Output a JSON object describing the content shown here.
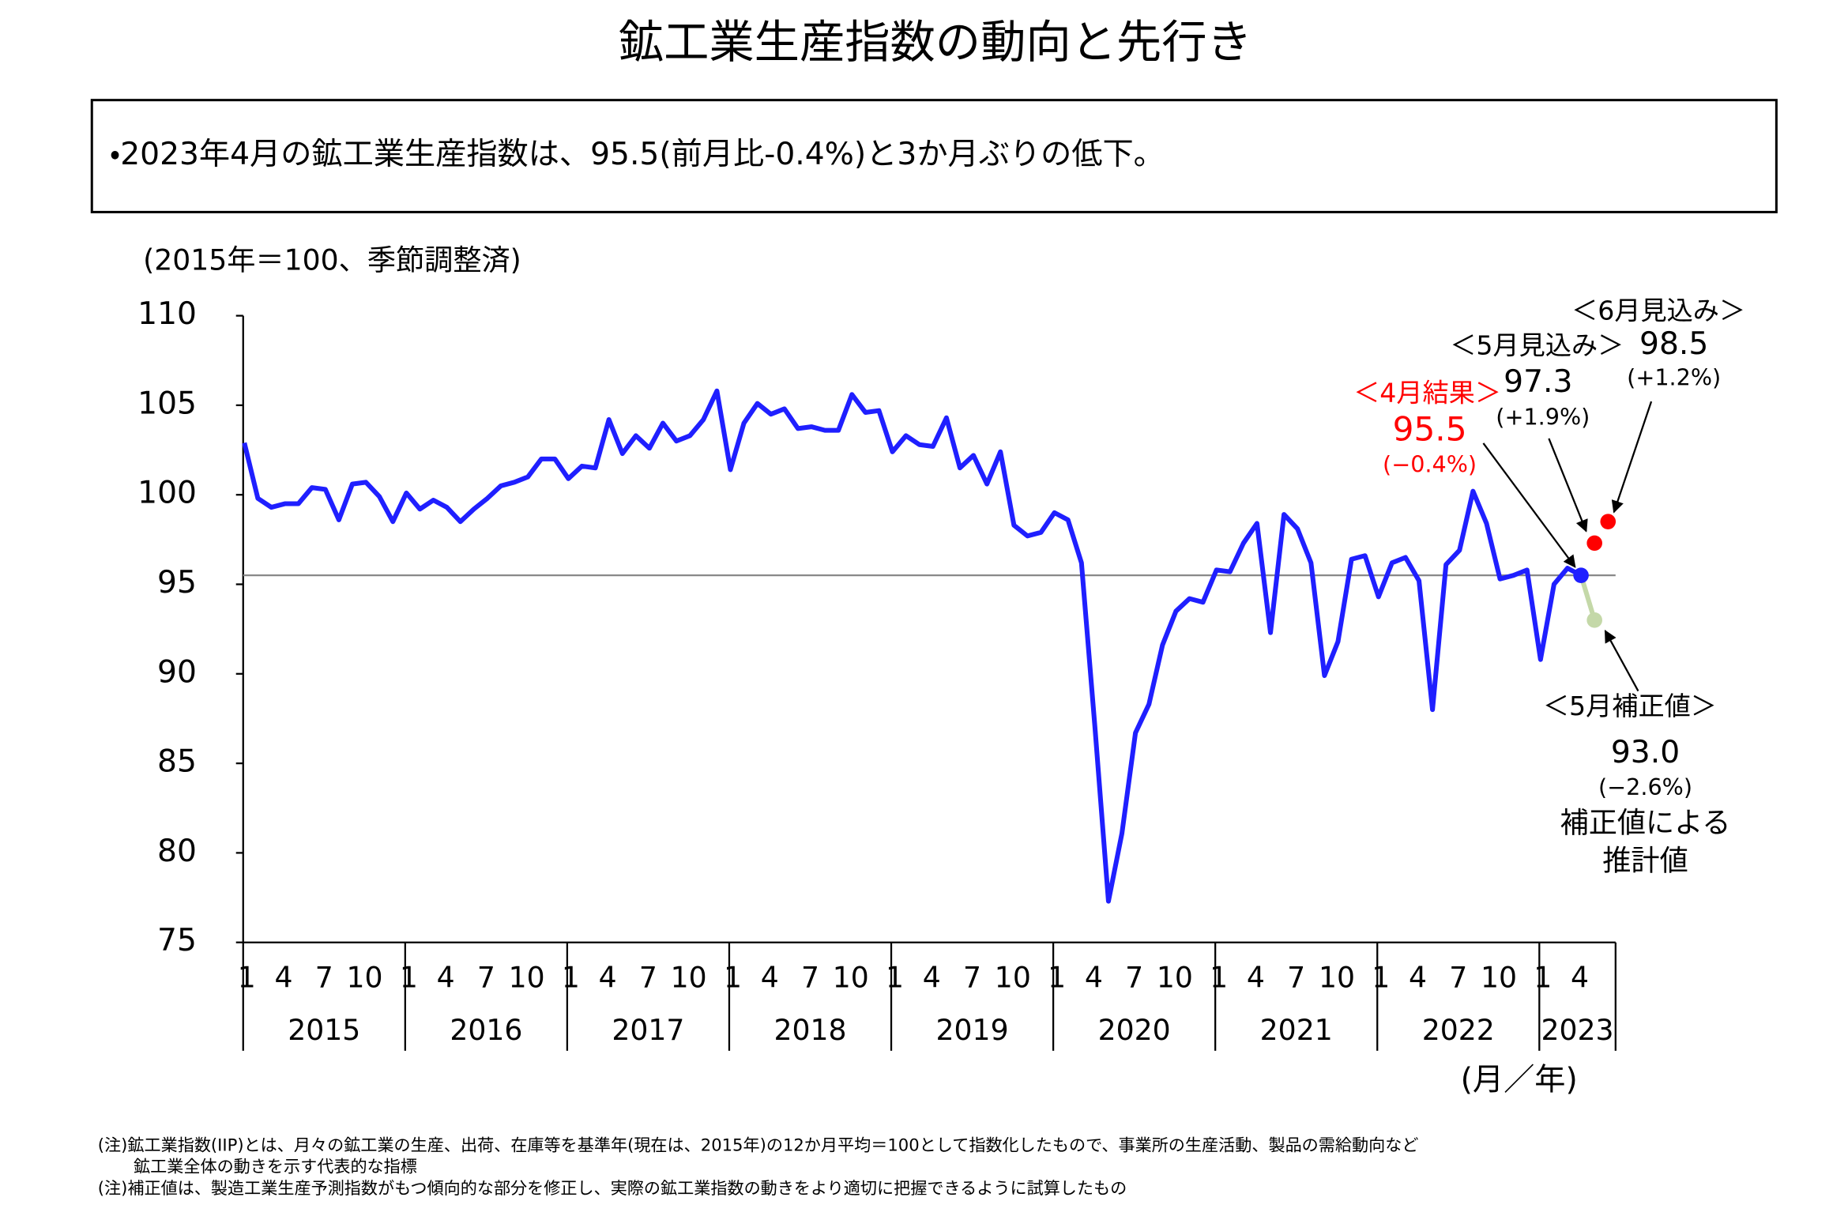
{
  "chart_data": {
    "type": "line",
    "title": "鉱工業生産指数の動向と先行き",
    "summary": "・2023年4月の鉱工業生産指数は、95.5(前月比-0.4%)と3か月ぶりの低下。",
    "y_label": "(2015年＝100、季節調整済)",
    "x_label": "(月／年)",
    "years": [
      "2015",
      "2016",
      "2017",
      "2018",
      "2019",
      "2020",
      "2021",
      "2022",
      "2023"
    ],
    "month_ticks": [
      "1",
      "4",
      "7",
      "10"
    ],
    "ylim": [
      75,
      110
    ],
    "yticks": [
      75,
      80,
      85,
      90,
      95,
      100,
      105,
      110
    ],
    "color": "#1f1fff",
    "values": [
      102.9,
      99.8,
      99.3,
      99.5,
      99.5,
      100.4,
      100.3,
      98.6,
      100.6,
      100.7,
      99.9,
      98.5,
      100.1,
      99.2,
      99.7,
      99.3,
      98.5,
      99.2,
      99.8,
      100.5,
      100.7,
      101.0,
      102.0,
      102.0,
      100.9,
      101.6,
      101.5,
      104.2,
      102.3,
      103.3,
      102.6,
      104.0,
      103.0,
      103.3,
      104.2,
      105.8,
      101.4,
      104.0,
      105.1,
      104.5,
      104.8,
      103.7,
      103.8,
      103.6,
      103.6,
      105.6,
      104.6,
      104.7,
      102.4,
      103.3,
      102.8,
      102.7,
      104.3,
      101.5,
      102.2,
      100.6,
      102.4,
      98.3,
      97.7,
      97.9,
      99.0,
      98.6,
      96.2,
      87.0,
      77.3,
      81.1,
      86.7,
      88.3,
      91.6,
      93.5,
      94.2,
      94.0,
      95.8,
      95.7,
      97.3,
      98.4,
      92.3,
      98.9,
      98.1,
      96.2,
      89.9,
      91.8,
      96.4,
      96.6,
      94.3,
      96.2,
      96.5,
      95.2,
      88.0,
      96.1,
      96.9,
      100.2,
      98.4,
      95.3,
      95.5,
      95.8,
      90.8,
      95.0,
      95.9,
      95.5
    ],
    "result": {
      "label": "＜4月結果＞",
      "value_label": "95.5",
      "change": "(−0.4%)",
      "color": "#ff0000"
    },
    "forecasts": [
      {
        "label": "＜5月見込み＞",
        "value": 97.3,
        "change": "(+1.9%)",
        "color": "#ff0000"
      },
      {
        "label": "＜6月見込み＞",
        "value": 98.5,
        "change": "(+1.2%)",
        "color": "#ff0000"
      }
    ],
    "corrected": {
      "label": "＜5月補正値＞",
      "value": 93.0,
      "value_label": "93.0",
      "change": "(−2.6%)",
      "note": [
        "補正値による",
        "推計値"
      ],
      "color": "#c4d8a8"
    },
    "notes": [
      "(注)鉱工業指数(IIP)とは、月々の鉱工業の生産、出荷、在庫等を基準年(現在は、2015年)の12か月平均＝100として指数化したもので、事業所の生産活動、製品の需給動向など",
      "鉱工業全体の動きを示す代表的な指標",
      "(注)補正値は、製造工業生産予測指数がもつ傾向的な部分を修正し、実際の鉱工業指数の動きをより適切に把握できるように試算したもの"
    ]
  }
}
